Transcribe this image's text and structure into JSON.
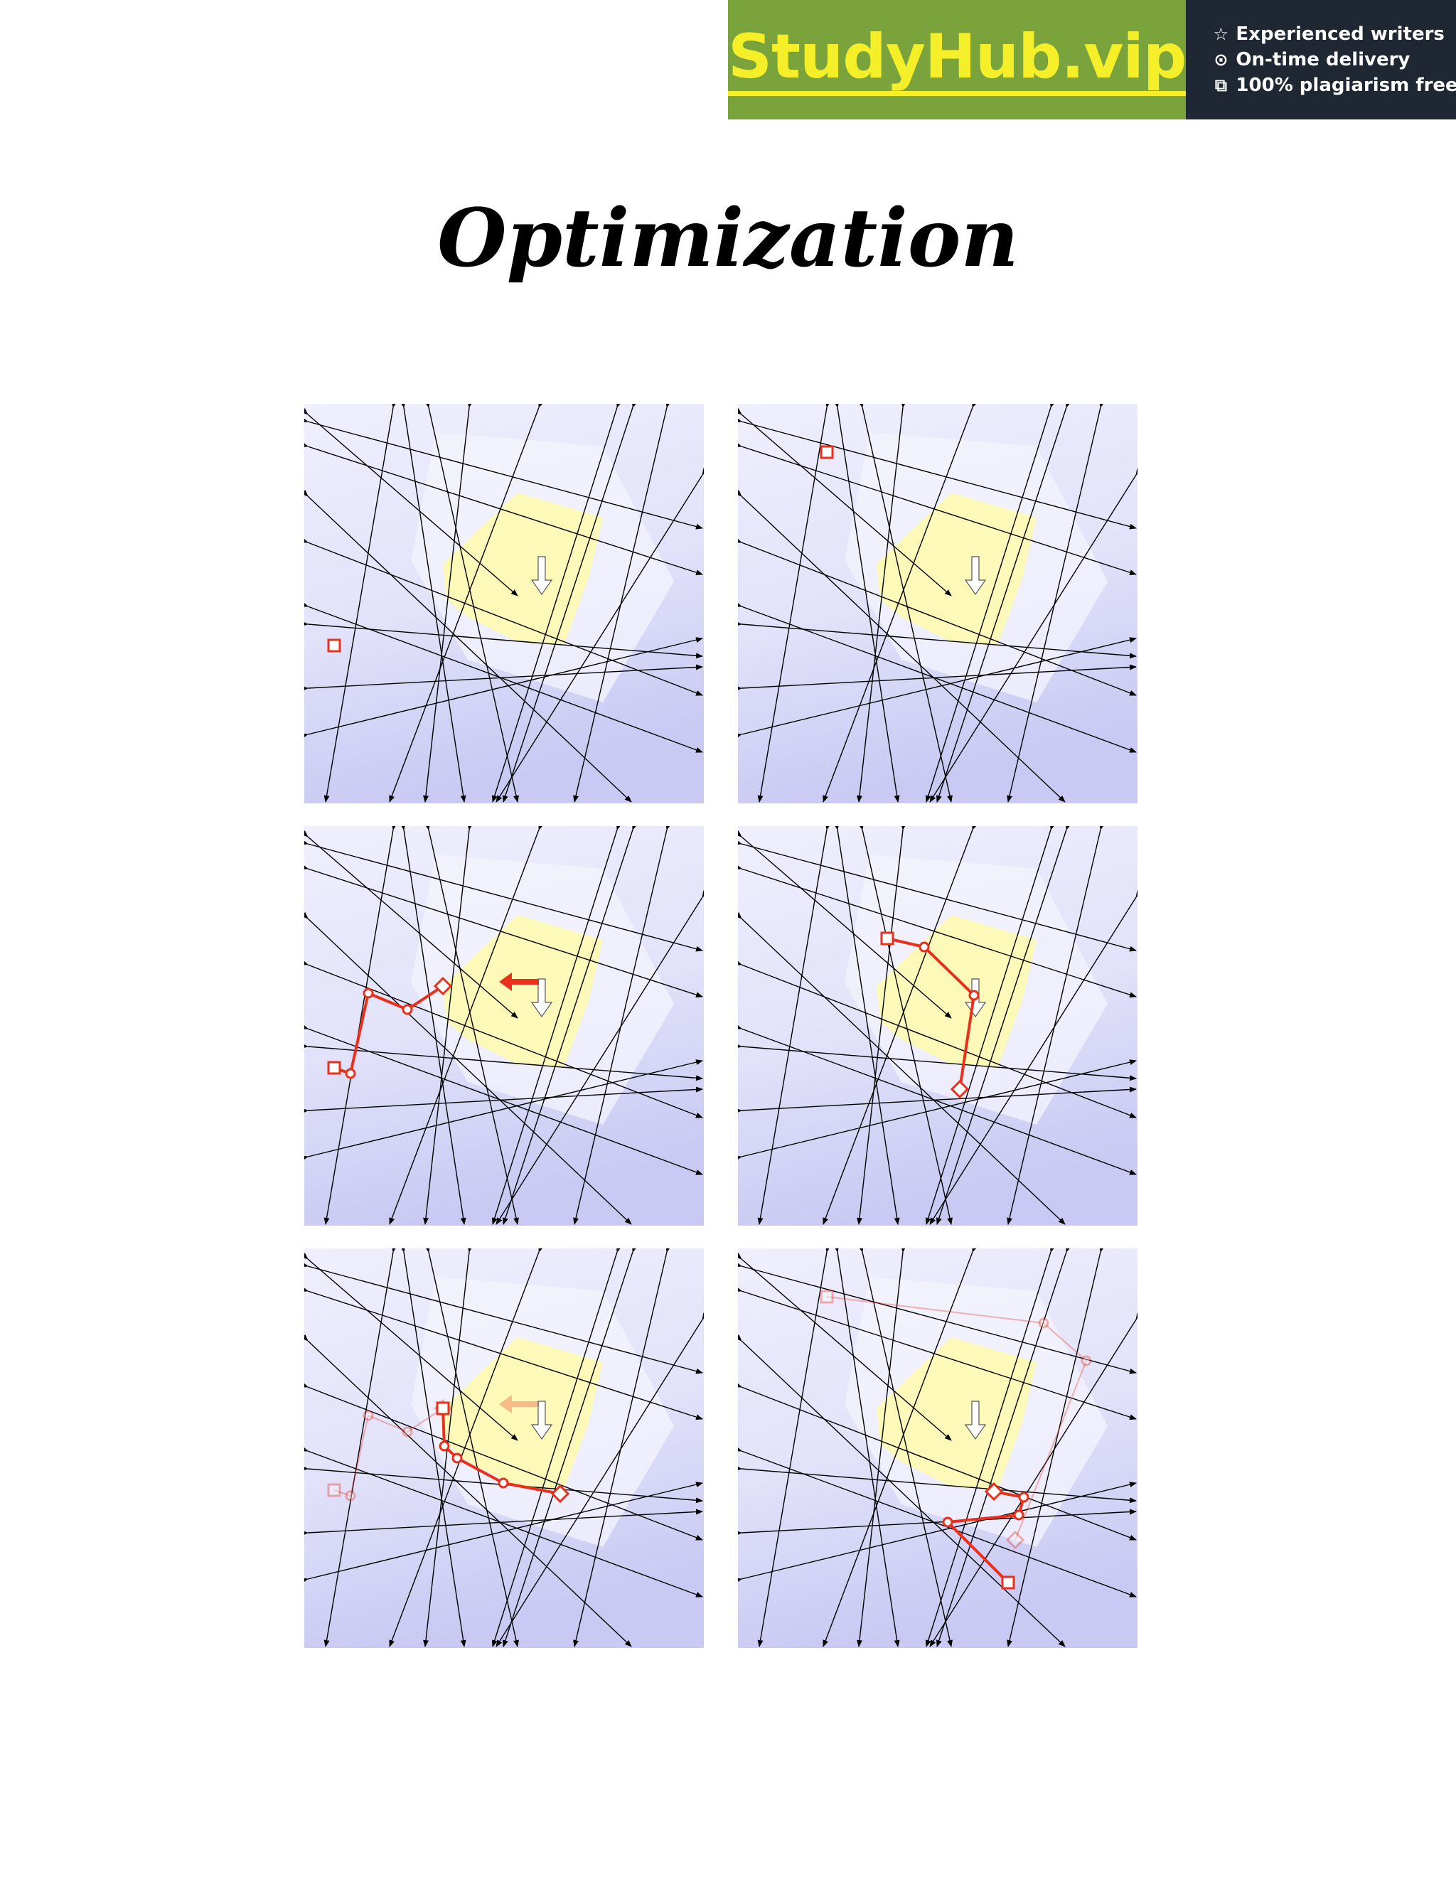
{
  "banner": {
    "logo_text": "StudyHub.vip",
    "features": [
      {
        "icon": "star-icon",
        "text": "Experienced writers"
      },
      {
        "icon": "clock-icon",
        "text": "On-time delivery"
      },
      {
        "icon": "copy-icon",
        "text": "100% plagiarism free"
      }
    ],
    "colors": {
      "green": "#7aa33b",
      "dark": "#1f2733",
      "logo": "#f5ef2a"
    }
  },
  "title": "Optimization",
  "figure": {
    "panel_count": 6,
    "colors": {
      "feasible_region": "#fdf9b8",
      "path": "#e8301c",
      "lines": "#000000"
    }
  }
}
